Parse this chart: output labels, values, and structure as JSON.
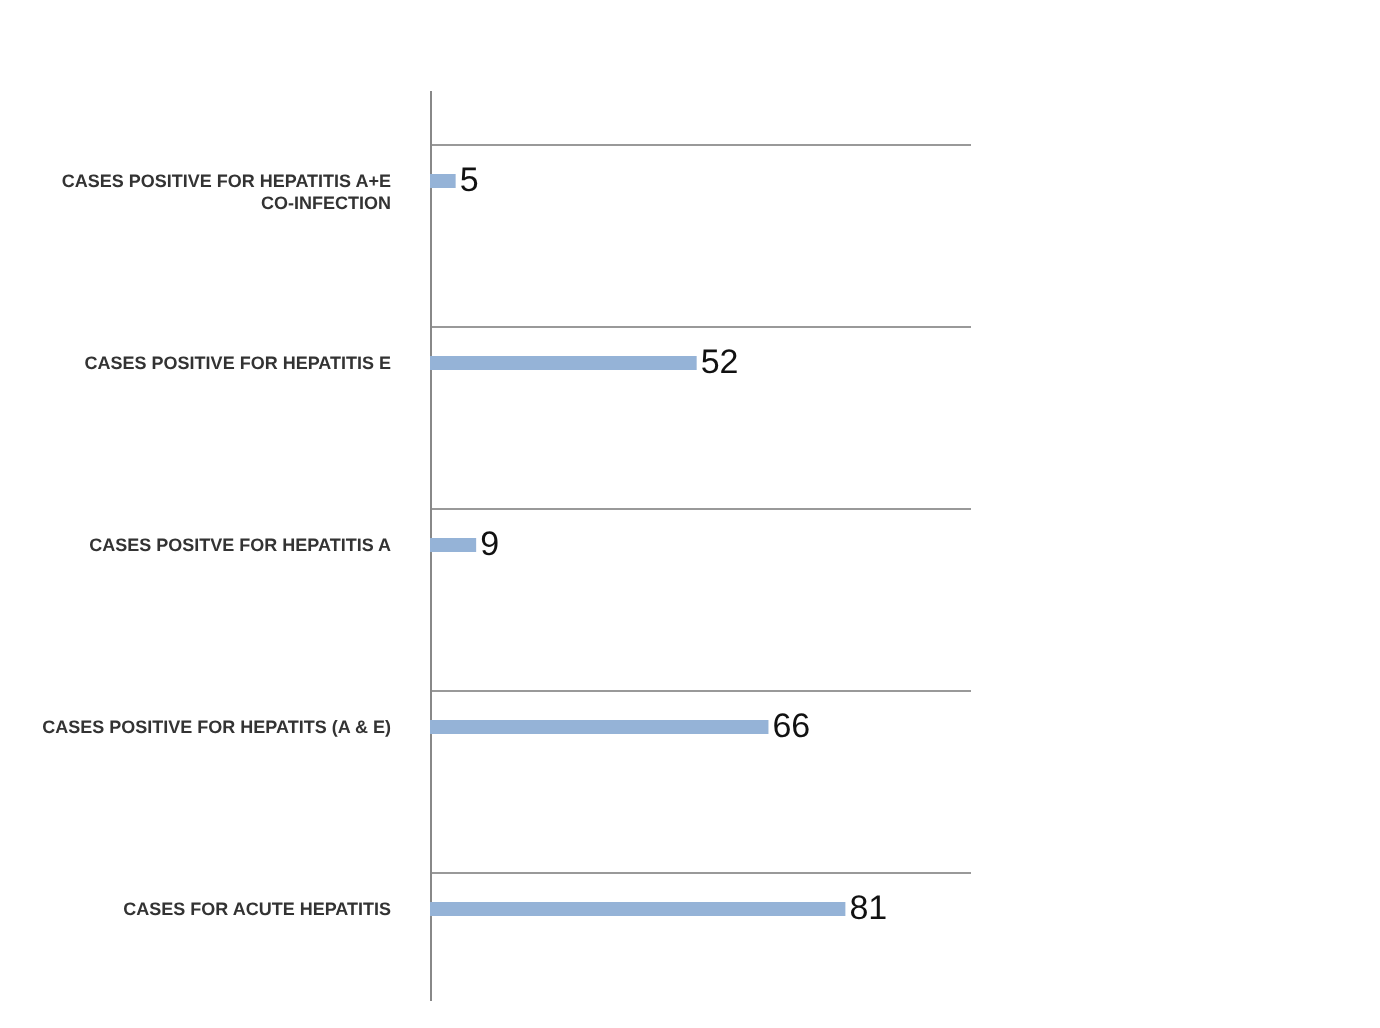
{
  "chart_data": {
    "type": "bar",
    "orientation": "horizontal",
    "categories": [
      "CASES POSITIVE FOR HEPATITIS A+E CO-INFECTION",
      "CASES POSITIVE FOR HEPATITIS E",
      "CASES POSITVE FOR HEPATITIS A",
      "CASES POSITIVE FOR HEPATITS (A & E)",
      "CASES FOR ACUTE HEPATITIS"
    ],
    "values": [
      5,
      52,
      9,
      66,
      81
    ],
    "color": "#95b3d7",
    "data_labels": true,
    "grid": "y"
  }
}
